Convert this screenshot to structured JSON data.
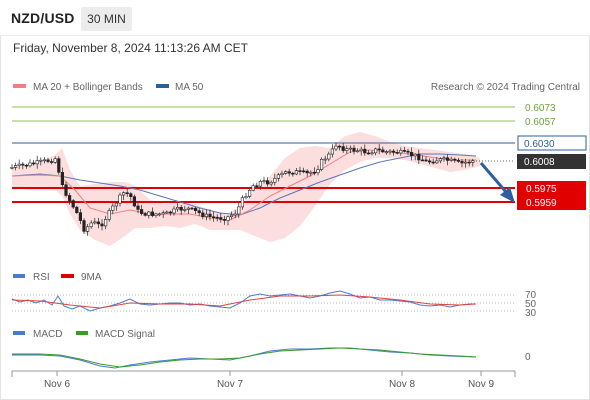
{
  "header": {
    "symbol": "NZD/USD",
    "timeframe": "30 MIN"
  },
  "datetime": "Friday, November 8, 2024 11:13:26 AM CET",
  "main_chart": {
    "legend": [
      {
        "label": "MA 20 + Bollinger Bands",
        "color": "#f08080"
      },
      {
        "label": "MA 50",
        "color": "#2c5f9e"
      }
    ],
    "credit": "Research © 2024 Trading Central",
    "levels": [
      {
        "label": "0.6073",
        "style": "target",
        "color": "#8dc653"
      },
      {
        "label": "0.6057",
        "style": "target",
        "color": "#8dc653"
      },
      {
        "label": "0.6030",
        "style": "resistance",
        "color": "#2c5f9e"
      },
      {
        "label": "0.6008",
        "style": "last-price",
        "color": "#333333"
      },
      {
        "label": "0.5975",
        "style": "support",
        "color": "#e00000"
      },
      {
        "label": "0.5959",
        "style": "support",
        "color": "#e00000"
      }
    ]
  },
  "rsi_panel": {
    "legend": [
      {
        "label": "RSI",
        "color": "#4a7bd0"
      },
      {
        "label": "9MA",
        "color": "#e00000"
      }
    ],
    "levels": [
      "70",
      "50",
      "30"
    ]
  },
  "macd_panel": {
    "legend": [
      {
        "label": "MACD",
        "color": "#4a7bd0"
      },
      {
        "label": "MACD Signal",
        "color": "#3a9a2a"
      }
    ],
    "zero_label": "0"
  },
  "x_axis": {
    "ticks": [
      "Nov 6",
      "Nov 7",
      "Nov 8",
      "Nov 9"
    ]
  }
}
